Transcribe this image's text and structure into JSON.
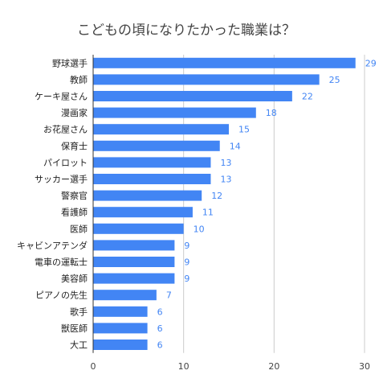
{
  "chart_data": {
    "type": "bar",
    "orientation": "horizontal",
    "title": "こどもの頃になりたかった職業は？",
    "categories": [
      "野球選手",
      "教師",
      "ケーキ屋さん",
      "漫画家",
      "お花屋さん",
      "保育士",
      "パイロット",
      "サッカー選手",
      "警察官",
      "看護師",
      "医師",
      "キャビンアテンダ",
      "電車の運転士",
      "美容師",
      "ピアノの先生",
      "歌手",
      "獣医師",
      "大工"
    ],
    "values": [
      29,
      25,
      22,
      18,
      15,
      14,
      13,
      13,
      12,
      11,
      10,
      9,
      9,
      9,
      7,
      6,
      6,
      6
    ],
    "xlim": [
      0,
      30
    ],
    "xticks": [
      0,
      10,
      20,
      30
    ],
    "grid": true,
    "data_labels": true,
    "bar_color": "#4285f4"
  }
}
